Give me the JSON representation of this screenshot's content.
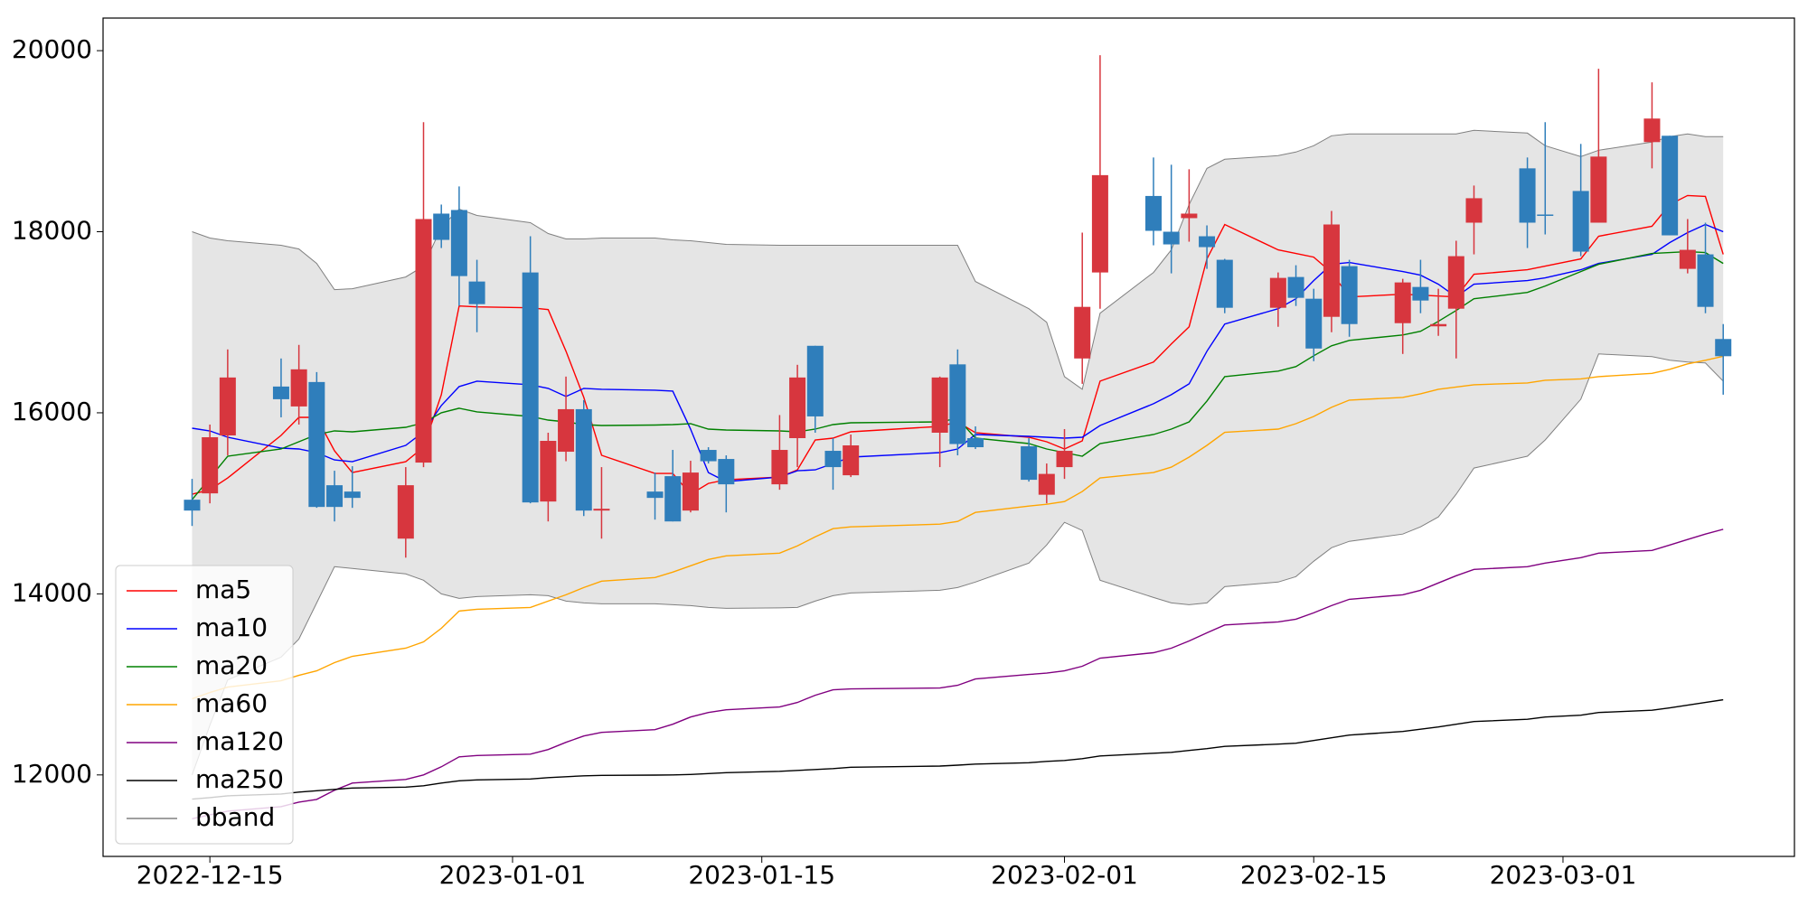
{
  "chart_data": {
    "type": "candlestick",
    "x": [
      "2022-12-14",
      "2022-12-15",
      "2022-12-16",
      "2022-12-19",
      "2022-12-20",
      "2022-12-21",
      "2022-12-22",
      "2022-12-23",
      "2022-12-26",
      "2022-12-27",
      "2022-12-28",
      "2022-12-29",
      "2022-12-30",
      "2023-01-02",
      "2023-01-03",
      "2023-01-04",
      "2023-01-05",
      "2023-01-06",
      "2023-01-09",
      "2023-01-10",
      "2023-01-11",
      "2023-01-12",
      "2023-01-13",
      "2023-01-16",
      "2023-01-17",
      "2023-01-18",
      "2023-01-19",
      "2023-01-20",
      "2023-01-25",
      "2023-01-26",
      "2023-01-27",
      "2023-01-30",
      "2023-01-31",
      "2023-02-01",
      "2023-02-02",
      "2023-02-03",
      "2023-02-06",
      "2023-02-07",
      "2023-02-08",
      "2023-02-09",
      "2023-02-10",
      "2023-02-13",
      "2023-02-14",
      "2023-02-15",
      "2023-02-16",
      "2023-02-17",
      "2023-02-20",
      "2023-02-21",
      "2023-02-22",
      "2023-02-23",
      "2023-02-24",
      "2023-02-27",
      "2023-02-28",
      "2023-03-02",
      "2023-03-03",
      "2023-03-06",
      "2023-03-07",
      "2023-03-08",
      "2023-03-09",
      "2023-03-10"
    ],
    "open": [
      15040,
      15110,
      15750,
      16290,
      16070,
      16340,
      15200,
      15130,
      14610,
      15450,
      18200,
      18240,
      17450,
      17550,
      15020,
      15570,
      16040,
      14920,
      15130,
      15300,
      14920,
      15590,
      15490,
      15210,
      15720,
      16740,
      15580,
      15310,
      15780,
      16535,
      15720,
      15630,
      15095,
      15400,
      16600,
      17550,
      18395,
      18000,
      18150,
      17950,
      17690,
      17160,
      17500,
      17260,
      17060,
      17620,
      16990,
      17390,
      16955,
      17150,
      18100,
      18700,
      18190,
      18450,
      18100,
      18990,
      19060,
      17590,
      17750,
      16815
    ],
    "high": [
      15270,
      15870,
      16700,
      16600,
      16750,
      16450,
      15360,
      15410,
      15400,
      19210,
      18300,
      18500,
      17690,
      17950,
      15780,
      16400,
      16140,
      15400,
      15340,
      15590,
      15470,
      15620,
      15530,
      15975,
      16530,
      16740,
      15720,
      15760,
      16400,
      16700,
      15850,
      15720,
      15440,
      15820,
      17990,
      19950,
      18820,
      18740,
      18690,
      18070,
      17700,
      17550,
      17630,
      17370,
      18230,
      17690,
      17480,
      17690,
      17370,
      17900,
      18510,
      18820,
      19210,
      18970,
      19800,
      19650,
      19060,
      18140,
      18100,
      16980
    ],
    "low": [
      14750,
      15000,
      15530,
      15950,
      15870,
      14950,
      14800,
      14950,
      14400,
      15400,
      17820,
      17180,
      16890,
      15000,
      14800,
      15465,
      14860,
      14610,
      14820,
      14800,
      14900,
      15440,
      14900,
      15150,
      15400,
      15780,
      15150,
      15290,
      15400,
      15530,
      15600,
      15240,
      15000,
      15270,
      16320,
      17150,
      17850,
      17540,
      17890,
      17590,
      17100,
      16950,
      17180,
      16570,
      16890,
      16840,
      16650,
      17100,
      16850,
      16600,
      17750,
      17820,
      17970,
      17730,
      18100,
      18700,
      17960,
      17540,
      17100,
      16200
    ],
    "close": [
      14920,
      15730,
      16390,
      16150,
      16480,
      14960,
      14960,
      15060,
      15200,
      18140,
      17910,
      17510,
      17200,
      15010,
      15690,
      16040,
      14920,
      14940,
      15060,
      14800,
      15340,
      15465,
      15210,
      15590,
      16390,
      15960,
      15400,
      15640,
      16390,
      15655,
      15620,
      15260,
      15325,
      15580,
      17170,
      18625,
      18010,
      17860,
      18200,
      17830,
      17160,
      17490,
      17270,
      16710,
      18080,
      16980,
      17440,
      17240,
      16980,
      17730,
      18370,
      18100,
      18180,
      17780,
      18830,
      19250,
      17960,
      17800,
      17170,
      16625
    ],
    "up_color": "#d7363e",
    "down_color": "#2f7ebb",
    "series": [
      {
        "name": "ma5",
        "color": "#ff0000",
        "values": [
          15100,
          15150,
          15280,
          15750,
          15950,
          15950,
          15580,
          15340,
          15460,
          15620,
          16200,
          17180,
          17170,
          17160,
          17140,
          16680,
          16170,
          15530,
          15330,
          15330,
          15100,
          15220,
          15260,
          15290,
          15370,
          15700,
          15720,
          15790,
          15850,
          15900,
          15780,
          15730,
          15680,
          15600,
          15690,
          16350,
          16560,
          16760,
          16950,
          17700,
          18080,
          17800,
          17760,
          17720,
          17550,
          17280,
          17310,
          17300,
          17290,
          17280,
          17530,
          17580,
          17620,
          17700,
          17950,
          18060,
          18300,
          18400,
          18390,
          17750
        ]
      },
      {
        "name": "ma10",
        "color": "#0000ff",
        "values": [
          15830,
          15800,
          15730,
          15610,
          15600,
          15560,
          15480,
          15460,
          15640,
          15790,
          16080,
          16290,
          16350,
          16310,
          16270,
          16180,
          16270,
          16260,
          16250,
          16240,
          15820,
          15340,
          15240,
          15290,
          15360,
          15370,
          15440,
          15510,
          15560,
          15600,
          15760,
          15740,
          15730,
          15720,
          15730,
          15860,
          16100,
          16200,
          16320,
          16680,
          16980,
          17150,
          17260,
          17460,
          17640,
          17660,
          17560,
          17520,
          17420,
          17280,
          17420,
          17460,
          17490,
          17580,
          17650,
          17750,
          17880,
          17990,
          18080,
          18000
        ]
      },
      {
        "name": "ma20",
        "color": "#008000",
        "values": [
          15040,
          15280,
          15520,
          15600,
          15680,
          15760,
          15800,
          15790,
          15840,
          15890,
          16000,
          16050,
          16010,
          15960,
          15920,
          15900,
          15870,
          15860,
          15865,
          15870,
          15880,
          15820,
          15810,
          15800,
          15790,
          15820,
          15870,
          15890,
          15900,
          15940,
          15720,
          15660,
          15600,
          15560,
          15520,
          15660,
          15760,
          15820,
          15900,
          16130,
          16400,
          16460,
          16510,
          16630,
          16740,
          16800,
          16860,
          16900,
          17010,
          17130,
          17260,
          17330,
          17400,
          17560,
          17640,
          17760,
          17770,
          17780,
          17770,
          17650
        ]
      },
      {
        "name": "ma60",
        "color": "#ffa500",
        "values": [
          12841,
          12910,
          12970,
          13040,
          13100,
          13150,
          13240,
          13310,
          13400,
          13470,
          13620,
          13810,
          13830,
          13850,
          13920,
          13990,
          14070,
          14140,
          14180,
          14240,
          14310,
          14380,
          14420,
          14450,
          14530,
          14630,
          14720,
          14740,
          14770,
          14800,
          14900,
          14970,
          14990,
          15020,
          15130,
          15280,
          15340,
          15400,
          15510,
          15640,
          15785,
          15820,
          15880,
          15960,
          16060,
          16140,
          16170,
          16210,
          16260,
          16285,
          16310,
          16330,
          16360,
          16375,
          16400,
          16435,
          16480,
          16540,
          16580,
          16624
        ]
      },
      {
        "name": "ma120",
        "color": "#800080",
        "values": [
          11516,
          11560,
          11600,
          11650,
          11700,
          11730,
          11830,
          11910,
          11950,
          12000,
          12090,
          12200,
          12215,
          12230,
          12280,
          12360,
          12430,
          12470,
          12500,
          12560,
          12640,
          12690,
          12720,
          12750,
          12800,
          12880,
          12940,
          12950,
          12960,
          12990,
          13060,
          13110,
          13125,
          13150,
          13200,
          13290,
          13350,
          13400,
          13480,
          13570,
          13656,
          13690,
          13720,
          13790,
          13870,
          13940,
          13990,
          14040,
          14120,
          14200,
          14270,
          14300,
          14340,
          14400,
          14450,
          14480,
          14540,
          14600,
          14660,
          14713
        ]
      },
      {
        "name": "ma250",
        "color": "#000000",
        "values": [
          11733,
          11750,
          11770,
          11790,
          11810,
          11825,
          11840,
          11855,
          11865,
          11880,
          11910,
          11935,
          11945,
          11955,
          11970,
          11980,
          11990,
          11995,
          11998,
          12000,
          12005,
          12015,
          12025,
          12040,
          12050,
          12060,
          12070,
          12085,
          12098,
          12108,
          12120,
          12135,
          12150,
          12160,
          12180,
          12210,
          12240,
          12250,
          12270,
          12290,
          12315,
          12340,
          12350,
          12380,
          12410,
          12440,
          12480,
          12505,
          12530,
          12560,
          12590,
          12615,
          12640,
          12660,
          12690,
          12715,
          12740,
          12770,
          12800,
          12830
        ]
      },
      {
        "name": "bband",
        "color": "#808080",
        "fill": "#e5e5e5",
        "upper": [
          18000,
          17930,
          17900,
          17850,
          17810,
          17650,
          17360,
          17370,
          17500,
          17620,
          18050,
          18250,
          18180,
          18100,
          17980,
          17920,
          17920,
          17930,
          17930,
          17910,
          17900,
          17880,
          17860,
          17850,
          17850,
          17850,
          17850,
          17850,
          17850,
          17850,
          17450,
          17150,
          17000,
          16400,
          16260,
          17100,
          17550,
          17800,
          18300,
          18700,
          18800,
          18840,
          18880,
          18950,
          19060,
          19080,
          19080,
          19080,
          19080,
          19080,
          19120,
          19090,
          18950,
          18830,
          18900,
          18990,
          19050,
          19080,
          19050,
          19050
        ],
        "lower": [
          12000,
          12550,
          13050,
          13300,
          13500,
          13900,
          14300,
          14280,
          14220,
          14150,
          14000,
          13950,
          13970,
          13990,
          13980,
          13920,
          13900,
          13890,
          13890,
          13880,
          13870,
          13850,
          13840,
          13845,
          13850,
          13920,
          13980,
          14010,
          14040,
          14070,
          14130,
          14340,
          14540,
          14790,
          14700,
          14150,
          13960,
          13900,
          13880,
          13900,
          14080,
          14130,
          14190,
          14360,
          14510,
          14580,
          14660,
          14740,
          14850,
          15100,
          15390,
          15520,
          15700,
          16150,
          16650,
          16620,
          16580,
          16560,
          16550,
          16350
        ]
      }
    ],
    "xlim": [
      "2022-12-09",
      "2023-03-14"
    ],
    "xticks": [
      "2022-12-15",
      "2023-01-01",
      "2023-01-15",
      "2023-02-01",
      "2023-02-15",
      "2023-03-01"
    ],
    "ylim": [
      11100,
      20360
    ],
    "yticks": [
      12000,
      14000,
      16000,
      18000,
      20000
    ],
    "legend": "lower left",
    "grid": false
  }
}
